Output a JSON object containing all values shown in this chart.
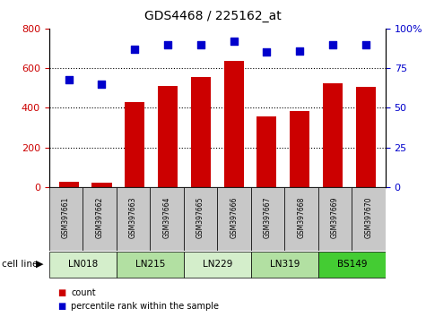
{
  "title": "GDS4468 / 225162_at",
  "samples": [
    "GSM397661",
    "GSM397662",
    "GSM397663",
    "GSM397664",
    "GSM397665",
    "GSM397666",
    "GSM397667",
    "GSM397668",
    "GSM397669",
    "GSM397670"
  ],
  "counts": [
    25,
    20,
    430,
    510,
    555,
    635,
    355,
    385,
    525,
    505
  ],
  "percentiles": [
    68,
    65,
    87,
    90,
    90,
    92,
    85,
    86,
    90,
    90
  ],
  "cell_lines": [
    {
      "name": "LN018",
      "cols": [
        0,
        1
      ],
      "color": "#d4eecb"
    },
    {
      "name": "LN215",
      "cols": [
        2,
        3
      ],
      "color": "#b2e0a2"
    },
    {
      "name": "LN229",
      "cols": [
        4,
        5
      ],
      "color": "#d4eecb"
    },
    {
      "name": "LN319",
      "cols": [
        6,
        7
      ],
      "color": "#b2e0a2"
    },
    {
      "name": "BS149",
      "cols": [
        8,
        9
      ],
      "color": "#44cc33"
    }
  ],
  "bar_color": "#cc0000",
  "dot_color": "#0000cc",
  "left_ylim": [
    0,
    800
  ],
  "right_ylim": [
    0,
    100
  ],
  "left_yticks": [
    0,
    200,
    400,
    600,
    800
  ],
  "right_yticks": [
    0,
    25,
    50,
    75,
    100
  ],
  "right_yticklabels": [
    "0",
    "25",
    "50",
    "75",
    "100%"
  ],
  "sample_bg_color": "#c8c8c8",
  "tick_color_left": "#cc0000",
  "tick_color_right": "#0000cc"
}
